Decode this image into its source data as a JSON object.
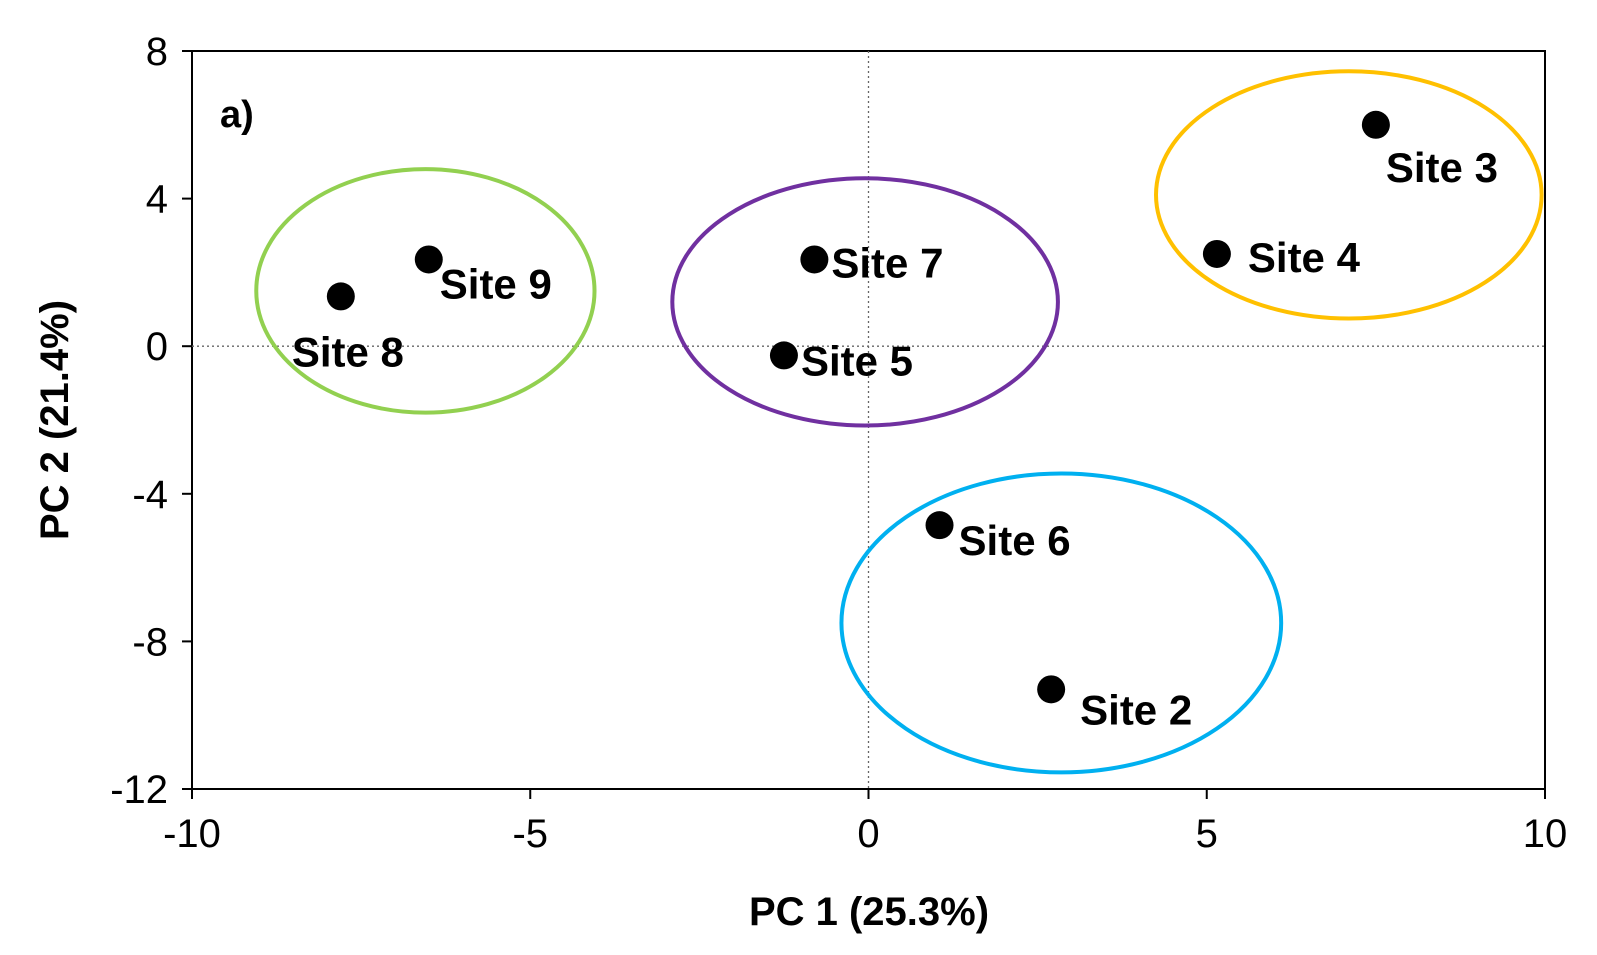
{
  "chart_data": {
    "type": "scatter",
    "panel_label": "a)",
    "xlabel": "PC 1 (25.3%)",
    "ylabel": "PC 2 (21.4%)",
    "xlim": [
      -10,
      10
    ],
    "ylim": [
      -12,
      8
    ],
    "xticks": [
      -10,
      -5,
      0,
      5,
      10
    ],
    "yticks": [
      -12,
      -8,
      -4,
      0,
      4,
      8
    ],
    "xtick_labels": [
      "-10",
      "-5",
      "0",
      "5",
      "10"
    ],
    "ytick_labels": [
      "-12",
      "-8",
      "-4",
      "0",
      "4",
      "8"
    ],
    "grid": false,
    "reference_lines": {
      "x": 0,
      "y": 0,
      "style": "dotted"
    },
    "points": [
      {
        "label": "Site 3",
        "x": 7.5,
        "y": 6.0
      },
      {
        "label": "Site 4",
        "x": 5.15,
        "y": 2.5
      },
      {
        "label": "Site 7",
        "x": -0.8,
        "y": 2.35
      },
      {
        "label": "Site 5",
        "x": -1.25,
        "y": -0.25
      },
      {
        "label": "Site 9",
        "x": -6.5,
        "y": 2.35
      },
      {
        "label": "Site 8",
        "x": -7.8,
        "y": 1.35
      },
      {
        "label": "Site 6",
        "x": 1.05,
        "y": -4.85
      },
      {
        "label": "Site 2",
        "x": 2.7,
        "y": -9.3
      }
    ],
    "clusters": [
      {
        "members": [
          "Site 9",
          "Site 8"
        ],
        "color": "#92D050",
        "cx": -6.55,
        "cy": 1.5,
        "rx": 2.5,
        "ry": 3.3
      },
      {
        "members": [
          "Site 7",
          "Site 5"
        ],
        "color": "#7030A0",
        "cx": -0.05,
        "cy": 1.2,
        "rx": 2.85,
        "ry": 3.35
      },
      {
        "members": [
          "Site 3",
          "Site 4"
        ],
        "color": "#FFC000",
        "cx": 7.1,
        "cy": 4.1,
        "rx": 2.85,
        "ry": 3.35
      },
      {
        "members": [
          "Site 6",
          "Site 2"
        ],
        "color": "#00B0F0",
        "cx": 2.85,
        "cy": -7.5,
        "rx": 3.25,
        "ry": 4.05
      }
    ]
  }
}
